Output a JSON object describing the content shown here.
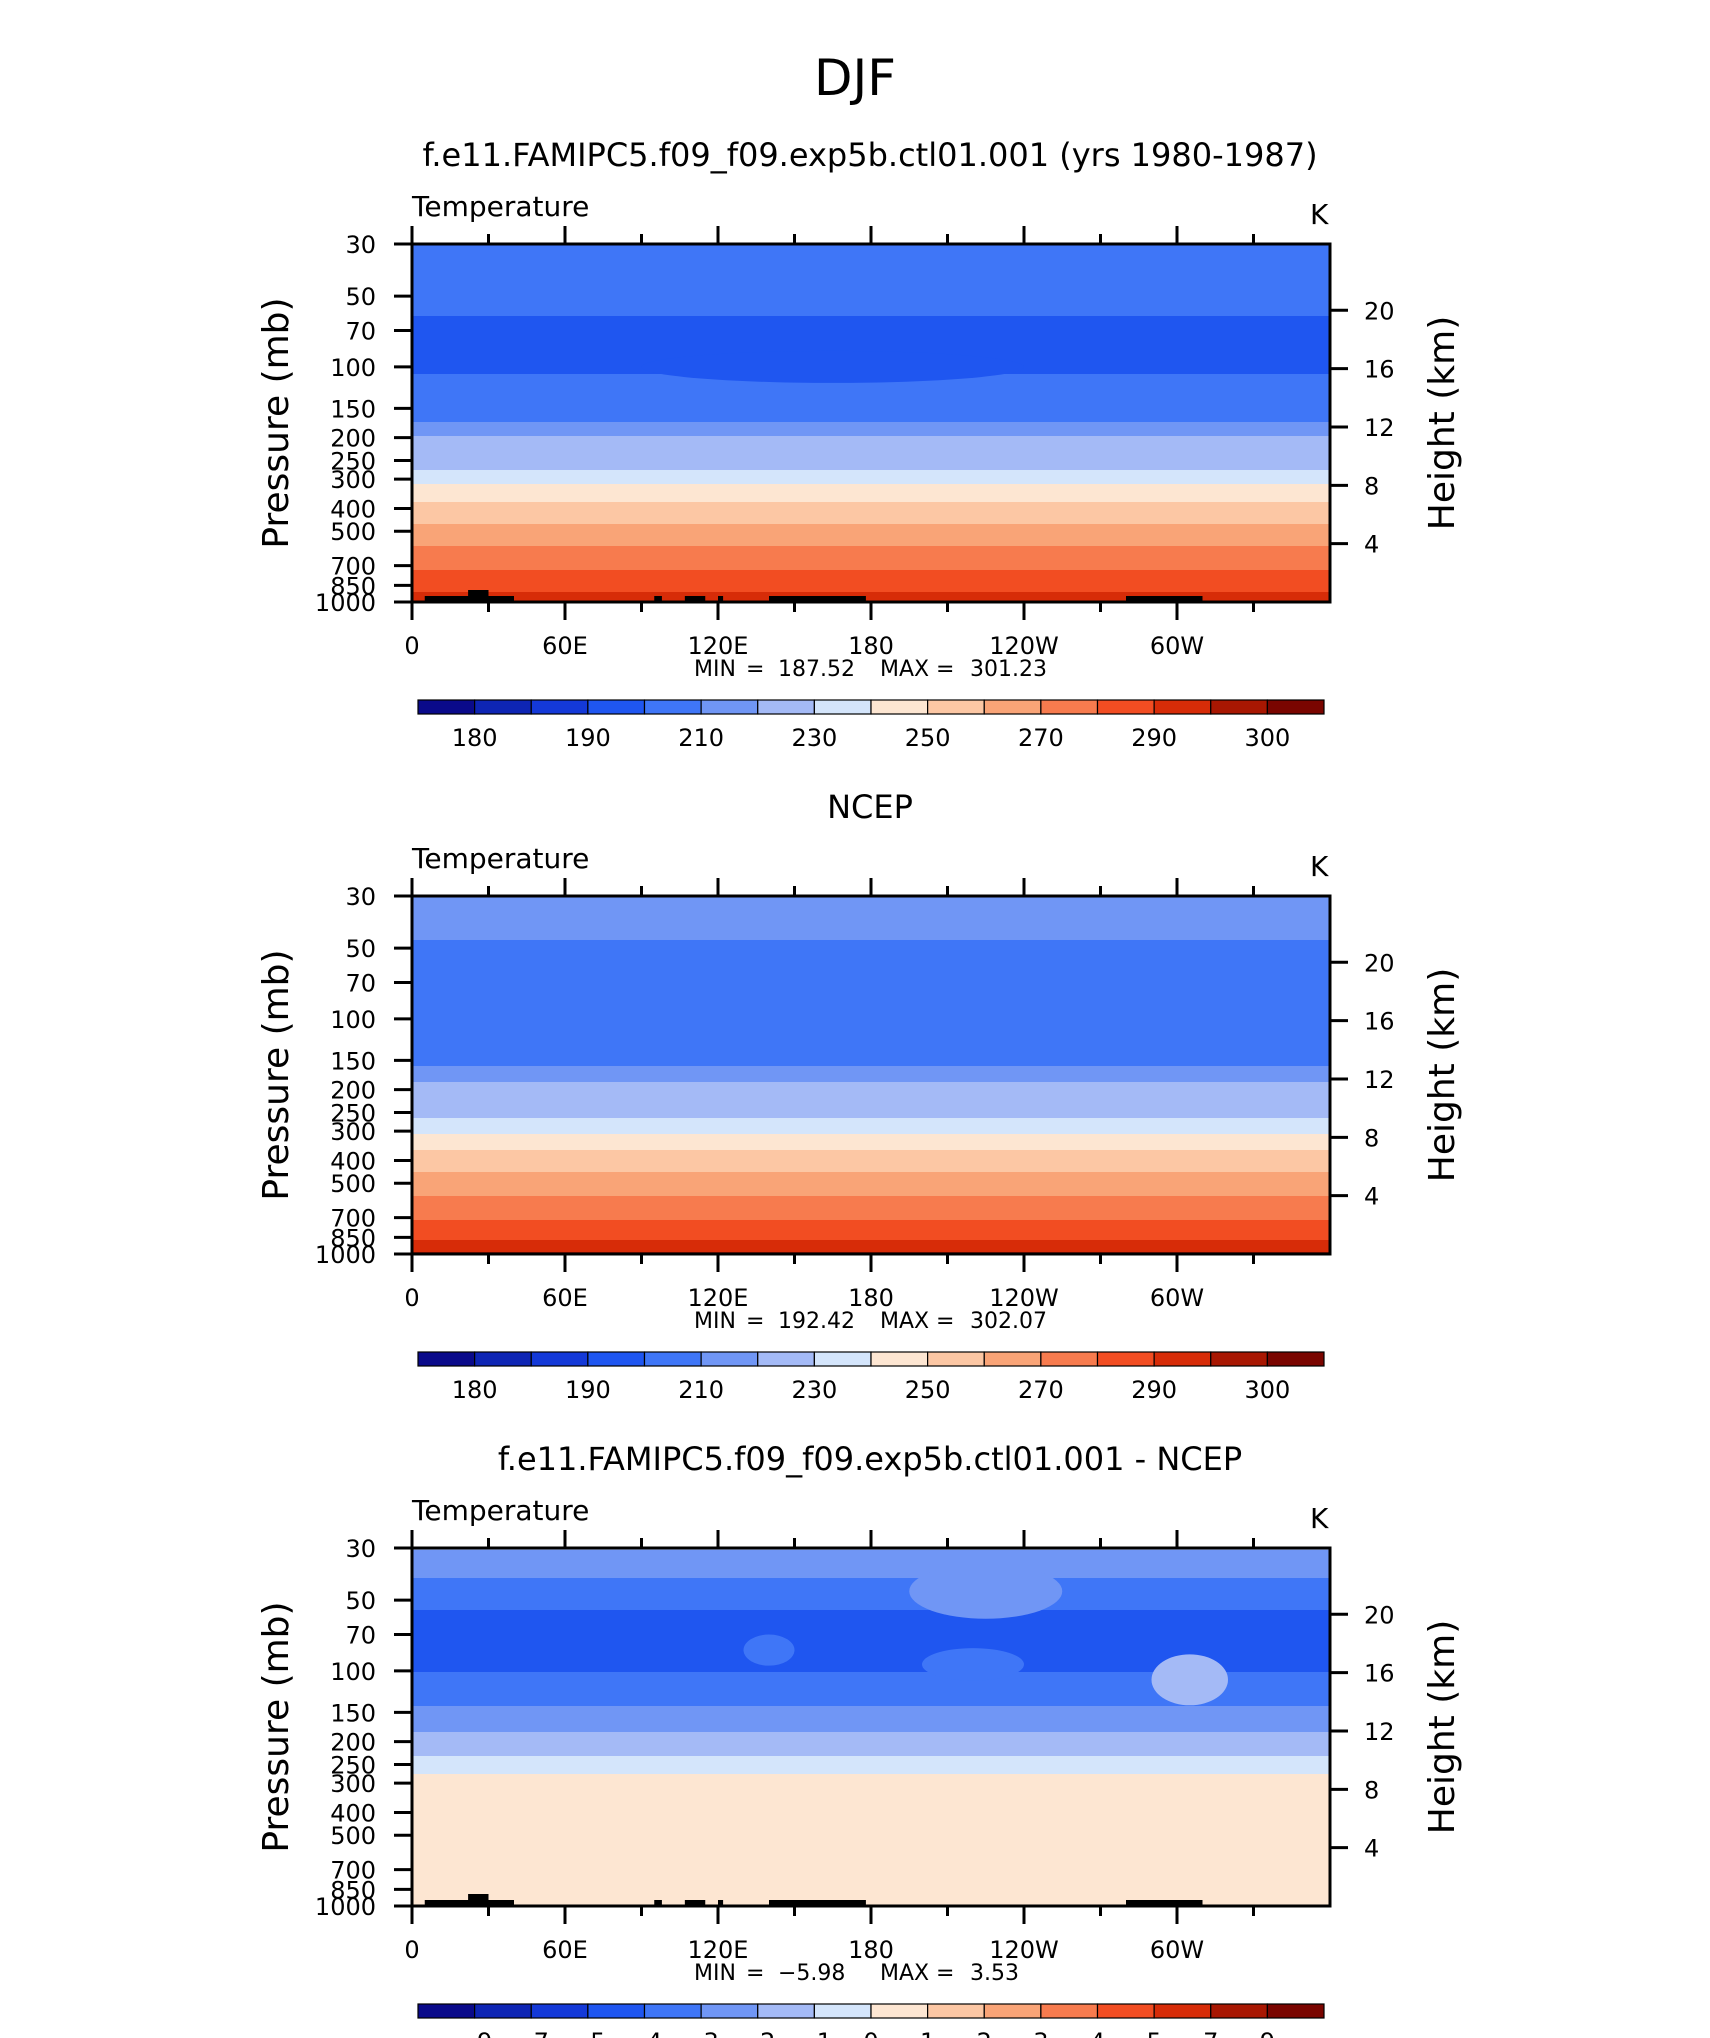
{
  "figure": {
    "title": "DJF"
  },
  "chart_data": [
    {
      "type": "heatmap",
      "title": "f.e11.FAMIPC5.f09_f09.exp5b.ctl01.001 (yrs 1980-1987)",
      "left_label": "Temperature",
      "right_label": "K",
      "ylabel": "Pressure (mb)",
      "ylabel_right": "Height (km)",
      "x_ticks": [
        "0",
        "60E",
        "120E",
        "180",
        "120W",
        "60W"
      ],
      "y_ticks": [
        "30",
        "50",
        "70",
        "100",
        "150",
        "200",
        "250",
        "300",
        "400",
        "500",
        "700",
        "850",
        "1000"
      ],
      "y_ticks_right": [
        "20",
        "16",
        "12",
        "8",
        "4"
      ],
      "stats": {
        "min_label": "MIN",
        "min": "187.52",
        "max_label": "MAX",
        "max": "301.23"
      },
      "colorbar": {
        "colors": [
          "#0a0a8a",
          "#0e25b4",
          "#1439d8",
          "#1f56f0",
          "#3f76f7",
          "#7096f5",
          "#a4baf6",
          "#d4e5fb",
          "#fde6d2",
          "#fcc7a4",
          "#f9a477",
          "#f77b4e",
          "#f24d22",
          "#d72c08",
          "#a81702",
          "#7a0500"
        ],
        "labels": [
          "180",
          "190",
          "210",
          "230",
          "250",
          "270",
          "290",
          "300"
        ]
      },
      "profile": [
        {
          "p": 30,
          "v": 208
        },
        {
          "p": 40,
          "v": 208
        },
        {
          "p": 50,
          "v": 204
        },
        {
          "p": 60,
          "v": 200
        },
        {
          "p": 100,
          "v": 199
        },
        {
          "p": 140,
          "v": 204
        },
        {
          "p": 180,
          "v": 212
        },
        {
          "p": 230,
          "v": 222
        },
        {
          "p": 280,
          "v": 232
        },
        {
          "p": 330,
          "v": 245
        },
        {
          "p": 420,
          "v": 256
        },
        {
          "p": 520,
          "v": 266
        },
        {
          "p": 650,
          "v": 275
        },
        {
          "p": 780,
          "v": 283
        },
        {
          "p": 900,
          "v": 290
        },
        {
          "p": 1000,
          "v": 293
        }
      ],
      "cold_core": {
        "lon_center": 165,
        "lon_halfwidth": 75,
        "p_center": 100,
        "delta": -7
      }
    },
    {
      "type": "heatmap",
      "title": "NCEP",
      "left_label": "Temperature",
      "right_label": "K",
      "ylabel": "Pressure (mb)",
      "ylabel_right": "Height (km)",
      "x_ticks": [
        "0",
        "60E",
        "120E",
        "180",
        "120W",
        "60W"
      ],
      "y_ticks": [
        "30",
        "50",
        "70",
        "100",
        "150",
        "200",
        "250",
        "300",
        "400",
        "500",
        "700",
        "850",
        "1000"
      ],
      "y_ticks_right": [
        "20",
        "16",
        "12",
        "8",
        "4"
      ],
      "stats": {
        "min_label": "MIN",
        "min": "192.42",
        "max_label": "MAX",
        "max": "302.07"
      },
      "colorbar": {
        "colors": [
          "#0a0a8a",
          "#0e25b4",
          "#1439d8",
          "#1f56f0",
          "#3f76f7",
          "#7096f5",
          "#a4baf6",
          "#d4e5fb",
          "#fde6d2",
          "#fcc7a4",
          "#f9a477",
          "#f77b4e",
          "#f24d22",
          "#d72c08",
          "#a81702",
          "#7a0500"
        ],
        "labels": [
          "180",
          "190",
          "210",
          "230",
          "250",
          "270",
          "290",
          "300"
        ]
      },
      "profile": [
        {
          "p": 30,
          "v": 213
        },
        {
          "p": 40,
          "v": 213
        },
        {
          "p": 50,
          "v": 208
        },
        {
          "p": 60,
          "v": 202
        },
        {
          "p": 100,
          "v": 202
        },
        {
          "p": 140,
          "v": 207
        },
        {
          "p": 180,
          "v": 214
        },
        {
          "p": 230,
          "v": 224
        },
        {
          "p": 280,
          "v": 234
        },
        {
          "p": 330,
          "v": 246
        },
        {
          "p": 420,
          "v": 257
        },
        {
          "p": 520,
          "v": 267
        },
        {
          "p": 650,
          "v": 276
        },
        {
          "p": 780,
          "v": 285
        },
        {
          "p": 900,
          "v": 292
        },
        {
          "p": 1000,
          "v": 296
        }
      ]
    },
    {
      "type": "heatmap",
      "title": "f.e11.FAMIPC5.f09_f09.exp5b.ctl01.001 - NCEP",
      "left_label": "Temperature",
      "right_label": "K",
      "ylabel": "Pressure (mb)",
      "ylabel_right": "Height (km)",
      "x_ticks": [
        "0",
        "60E",
        "120E",
        "180",
        "120W",
        "60W"
      ],
      "y_ticks": [
        "30",
        "50",
        "70",
        "100",
        "150",
        "200",
        "250",
        "300",
        "400",
        "500",
        "700",
        "850",
        "1000"
      ],
      "y_ticks_right": [
        "20",
        "16",
        "12",
        "8",
        "4"
      ],
      "stats": {
        "min_label": "MIN",
        "min": "−5.98",
        "max_label": "MAX",
        "max": "3.53"
      },
      "colorbar": {
        "colors": [
          "#0a0a8a",
          "#0e25b4",
          "#1439d8",
          "#1f56f0",
          "#3f76f7",
          "#7096f5",
          "#a4baf6",
          "#d4e5fb",
          "#fde6d2",
          "#fcc7a4",
          "#f9a477",
          "#f77b4e",
          "#f24d22",
          "#d72c08",
          "#a81702",
          "#7a0500"
        ],
        "labels": [
          "−9",
          "−7",
          "−5",
          "−4",
          "−3",
          "−2",
          "−1",
          "0",
          "1",
          "2",
          "3",
          "4",
          "5",
          "7",
          "9"
        ]
      },
      "profile": [
        {
          "p": 30,
          "v": 2
        },
        {
          "p": 40,
          "v": 3
        },
        {
          "p": 55,
          "v": 4
        },
        {
          "p": 70,
          "v": 5
        },
        {
          "p": 100,
          "v": 4
        },
        {
          "p": 140,
          "v": 3
        },
        {
          "p": 180,
          "v": 2
        },
        {
          "p": 230,
          "v": 1
        },
        {
          "p": 270,
          "v": 0
        },
        {
          "p": 1000,
          "v": 0
        }
      ],
      "patches": [
        {
          "lon0": 130,
          "lon1": 150,
          "p0": 70,
          "p1": 95,
          "v": 4
        },
        {
          "lon0": 200,
          "lon1": 240,
          "p0": 80,
          "p1": 110,
          "v": 4
        },
        {
          "lon0": 290,
          "lon1": 320,
          "p0": 85,
          "p1": 140,
          "v": 2
        },
        {
          "lon0": 195,
          "lon1": 255,
          "p0": 35,
          "p1": 60,
          "v": 3
        },
        {
          "lon0": 50,
          "lon1": 100,
          "p0": 340,
          "p1": 480,
          "v": 8
        },
        {
          "lon0": 215,
          "lon1": 255,
          "p0": 420,
          "p1": 560,
          "v": 8
        },
        {
          "lon0": 10,
          "lon1": 85,
          "p0": 720,
          "p1": 880,
          "v": 8
        },
        {
          "lon0": 125,
          "lon1": 175,
          "p0": 780,
          "p1": 880,
          "v": 8
        },
        {
          "lon0": 280,
          "lon1": 315,
          "p0": 800,
          "p1": 940,
          "v": 8
        }
      ]
    }
  ]
}
